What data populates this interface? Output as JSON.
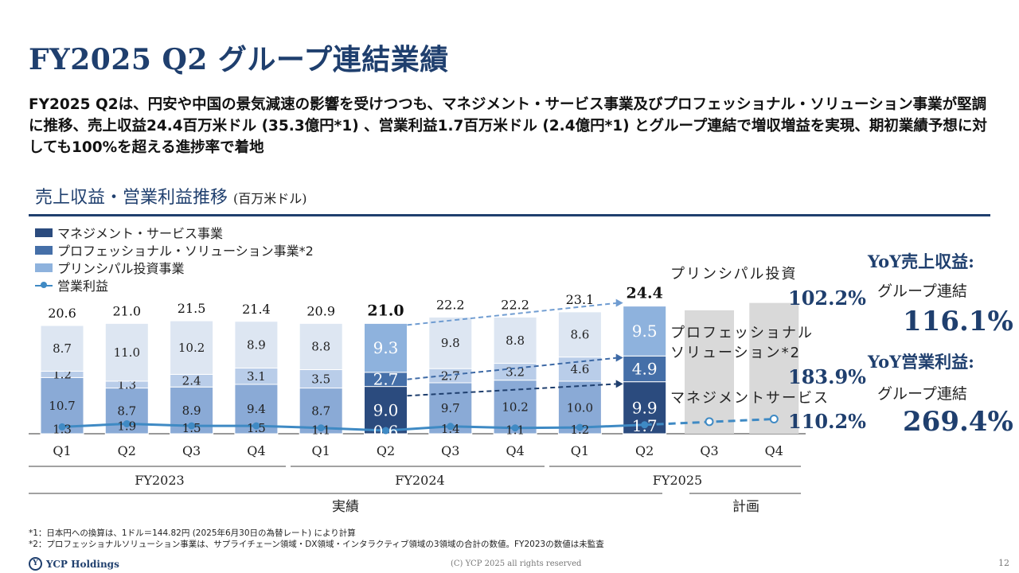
{
  "title": "FY2025 Q2 グループ連結業績",
  "summary": "FY2025 Q2は、円安や中国の景気減速の影響を受けつつも、マネジメント・サービス事業及びプロフェッショナル・ソリューション事業が堅調に推移、売上収益24.4百万米ドル (35.3億円*1) 、営業利益1.7百万米ドル (2.4億円*1) とグループ連結で増収増益を実現、期初業績予想に対しても100%を超える進捗率で着地",
  "section": {
    "title": "売上収益・営業利益推移",
    "unit": "(百万米ドル)"
  },
  "legend": [
    "マネジメント・サービス事業",
    "プロフェッショナル・ソリューション事業*2",
    "プリンシパル投資事業",
    "営業利益"
  ],
  "colors": {
    "management": "#8aaad6",
    "professional": "#b9cde9",
    "principal": "#dde6f2",
    "management_hl": "#2b4b7e",
    "professional_hl": "#456fa8",
    "principal_hl": "#8eb2dd",
    "plan": "#d9d9d9",
    "line": "#3f8ac4",
    "accent": "#1f3f6e"
  },
  "chart_data": {
    "type": "bar",
    "stacked": true,
    "categories": [
      "Q1",
      "Q2",
      "Q3",
      "Q4",
      "Q1",
      "Q2",
      "Q3",
      "Q4",
      "Q1",
      "Q2",
      "Q3",
      "Q4"
    ],
    "years": [
      "FY2023",
      "FY2024",
      "FY2025"
    ],
    "groups": [
      "実績",
      "計画"
    ],
    "series": [
      {
        "name": "マネジメント・サービス事業",
        "values": [
          10.7,
          8.7,
          8.9,
          9.4,
          8.7,
          9.0,
          9.7,
          10.2,
          10.0,
          9.9,
          null,
          null
        ]
      },
      {
        "name": "プロフェッショナル・ソリューション事業*2",
        "values": [
          1.2,
          1.3,
          2.4,
          3.1,
          3.5,
          2.7,
          2.7,
          3.2,
          4.6,
          4.9,
          null,
          null
        ]
      },
      {
        "name": "プリンシパル投資事業",
        "values": [
          8.7,
          11.0,
          10.2,
          8.9,
          8.8,
          9.3,
          9.8,
          8.8,
          8.6,
          9.5,
          null,
          null
        ]
      },
      {
        "name": "営業利益",
        "type": "line",
        "values": [
          1.3,
          1.9,
          1.5,
          1.5,
          1.1,
          0.6,
          1.4,
          1.1,
          1.2,
          1.7,
          null,
          null
        ]
      }
    ],
    "totals": [
      "20.6",
      "21.0",
      "21.5",
      "21.4",
      "20.9",
      "21.0",
      "22.2",
      "22.2",
      "23.1",
      "24.4",
      "",
      ""
    ],
    "annotations": [
      {
        "label": "プリンシパル投資",
        "value": "102.2%"
      },
      {
        "label": "プロフェッショナル\nソリューション*2",
        "value": "183.9%"
      },
      {
        "label": "マネジメントサービス",
        "value": "110.2%"
      }
    ]
  },
  "yoy": {
    "revenue_label": "YoY売上収益:",
    "revenue_sub": "グループ連結",
    "revenue_value": "116.1%",
    "profit_label": "YoY営業利益:",
    "profit_sub": "グループ連結",
    "profit_value": "269.4%"
  },
  "footnotes": [
    "*1：日本円への換算は、1ドル＝144.82円 (2025年6月30日の為替レート) により計算",
    "*2：プロフェッショナルソリューション事業は、サプライチェーン領域・DX領域・インタラクティブ領域の3領域の合計の数値。FY2023の数値は未監査"
  ],
  "footer": {
    "company": "YCP Holdings",
    "copyright": "(C) YCP 2025 all rights reserved",
    "page": "12"
  }
}
